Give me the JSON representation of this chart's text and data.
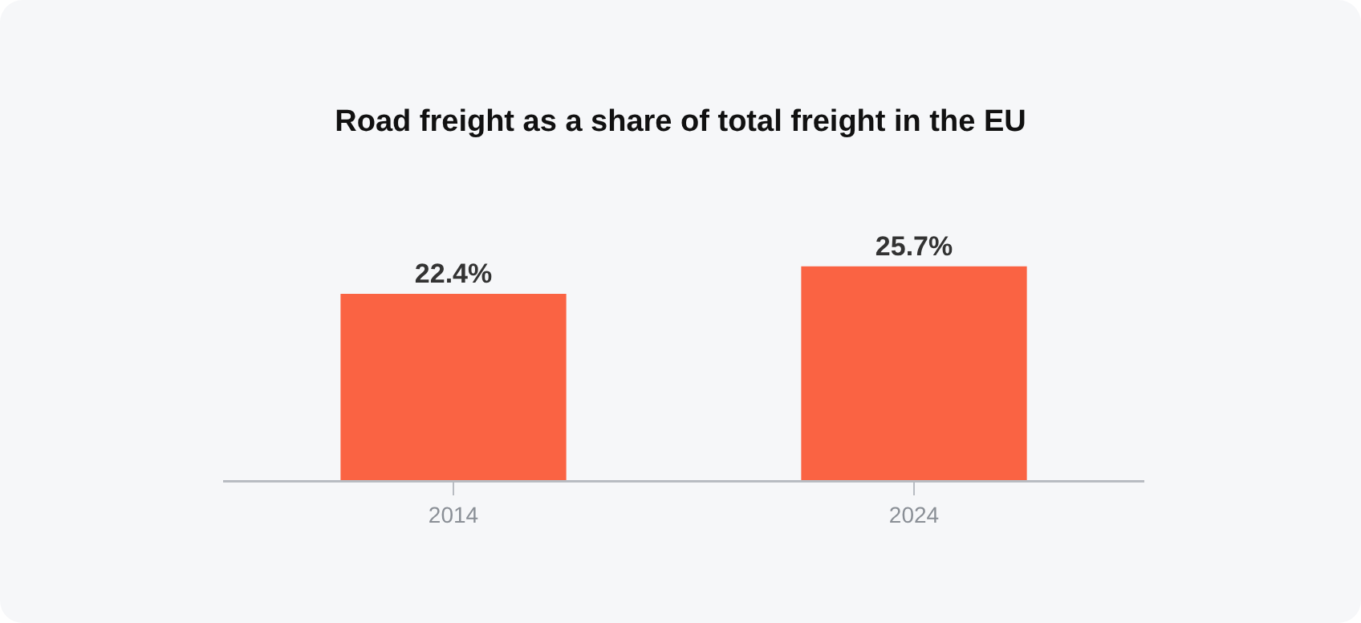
{
  "chart_data": {
    "type": "bar",
    "title": "Road freight as a share of total freight in the EU",
    "categories": [
      "2014",
      "2024"
    ],
    "values": [
      22.4,
      25.7
    ],
    "value_labels": [
      "22.4%",
      "25.7%"
    ],
    "color": "#fa6343",
    "legend": false
  }
}
